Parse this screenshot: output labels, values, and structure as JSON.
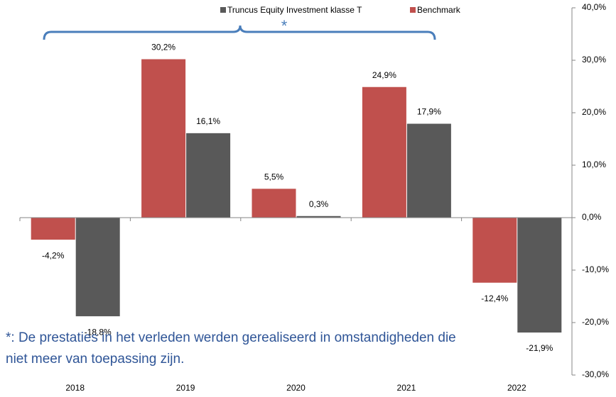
{
  "chart_data": {
    "type": "bar",
    "categories": [
      "2018",
      "2019",
      "2020",
      "2021",
      "2022"
    ],
    "series": [
      {
        "name": "Truncus Equity Investment klasse T",
        "color": "#595959",
        "values": [
          -18.8,
          16.1,
          0.3,
          17.9,
          -21.9
        ],
        "value_labels": [
          "-18,8%",
          "16,1%",
          "0,3%",
          "17,9%",
          "-21,9%"
        ]
      },
      {
        "name": "Benchmark",
        "color": "#c0504d",
        "values": [
          -4.2,
          30.2,
          5.5,
          24.9,
          -12.4
        ],
        "value_labels": [
          "-4,2%",
          "30,2%",
          "5,5%",
          "24,9%",
          "-12,4%"
        ]
      }
    ],
    "ylim": [
      -30,
      40
    ],
    "yticks": [
      {
        "value": -30,
        "label": "-30,0%"
      },
      {
        "value": -20,
        "label": "-20,0%"
      },
      {
        "value": -10,
        "label": "-10,0%"
      },
      {
        "value": 0,
        "label": "0,0%"
      },
      {
        "value": 10,
        "label": "10,0%"
      },
      {
        "value": 20,
        "label": "20,0%"
      },
      {
        "value": 30,
        "label": "30,0%"
      },
      {
        "value": 40,
        "label": "40,0%"
      }
    ],
    "annotations": [
      "*",
      "*: De prestaties in het verleden werden gerealiseerd in omstandigheden die",
      "niet meer van toepassing zijn."
    ],
    "legend": "top"
  }
}
